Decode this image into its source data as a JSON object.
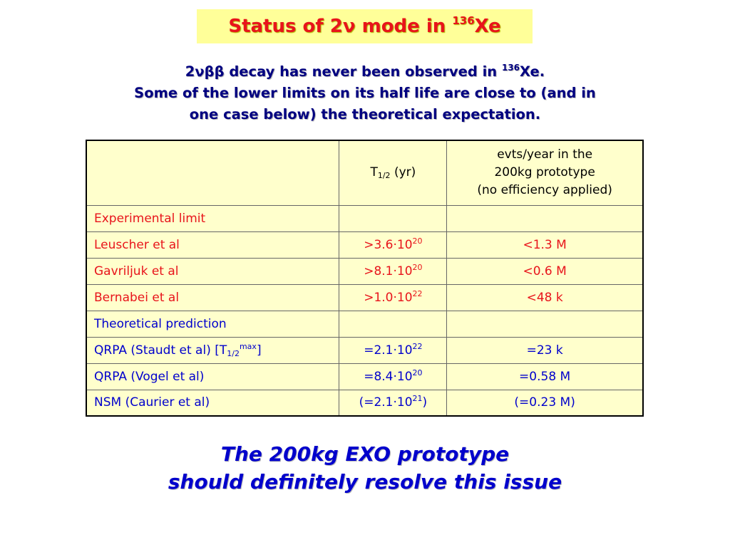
{
  "title": {
    "prefix": "Status of 2ν mode in ",
    "isotope_sup": "136",
    "isotope": "Xe"
  },
  "intro": {
    "line1_prefix": "2νββ decay has never been observed in ",
    "line1_sup": "136",
    "line1_suffix": "Xe.",
    "line2": "Some of the lower limits on its half life are close to (and in",
    "line3": "one case below) the theoretical expectation."
  },
  "table": {
    "header": {
      "col1_main": "T",
      "col1_sub": "1/2",
      "col1_suffix": " (yr)",
      "col2_line1": "evts/year in the",
      "col2_line2": "200kg prototype",
      "col2_line3": "(no efficiency applied)"
    },
    "section_experimental": "Experimental limit",
    "experimental_rows": [
      {
        "label": "Leuscher et al",
        "t_base": ">3.6·10",
        "t_exp": "20",
        "t_close": "",
        "evts": "<1.3 M"
      },
      {
        "label": "Gavriljuk et al",
        "t_base": ">8.1·10",
        "t_exp": "20",
        "t_close": "",
        "evts": "<0.6 M"
      },
      {
        "label": "Bernabei et al",
        "t_base": ">1.0·10",
        "t_exp": "22",
        "t_close": "",
        "evts": "<48 k"
      }
    ],
    "section_theoretical": "Theoretical prediction",
    "theoretical_rows": [
      {
        "label_prefix": "QRPA (Staudt et al) [T",
        "label_sub": "1/2",
        "label_sup": "max",
        "label_suffix": "]",
        "t_base": "=2.1·10",
        "t_exp": "22",
        "t_close": "",
        "evts": "=23 k"
      },
      {
        "label_prefix": "QRPA (Vogel et al)",
        "label_sub": "",
        "label_sup": "",
        "label_suffix": "",
        "t_base": "=8.4·10",
        "t_exp": "20",
        "t_close": "",
        "evts": "=0.58 M"
      },
      {
        "label_prefix": "NSM (Caurier et al)",
        "label_sub": "",
        "label_sup": "",
        "label_suffix": "",
        "t_base": "(=2.1·10",
        "t_exp": "21",
        "t_close": ")",
        "evts": "(=0.23 M)"
      }
    ]
  },
  "conclusion": {
    "line1": "The 200kg EXO prototype",
    "line2": "should definitely resolve this issue"
  },
  "colors": {
    "title_bg": "#ffff99",
    "title_text": "#e8141b",
    "intro_text": "#000080",
    "table_bg": "#ffffcc",
    "experimental": "#e8141b",
    "theoretical": "#0000cc",
    "conclusion": "#0000cc"
  }
}
